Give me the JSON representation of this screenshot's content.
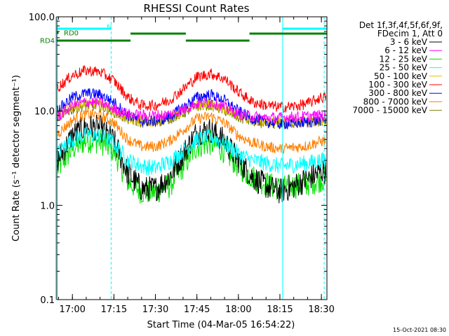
{
  "chart_data": {
    "type": "line",
    "title": "RHESSI Count Rates",
    "xlabel": "Start Time (04-Mar-05 16:54:22)",
    "ylabel": "Count Rate (s⁻¹ detector segment⁻¹)",
    "yscale": "log",
    "ylim": [
      0.1,
      100.0
    ],
    "xlim": [
      "16:54:22",
      "18:32:00"
    ],
    "x_ticks": [
      "17:00",
      "17:15",
      "17:30",
      "17:45",
      "18:00",
      "18:15",
      "18:30"
    ],
    "y_ticks": [
      "0.1",
      "1.0",
      "10.0",
      "100.0"
    ],
    "legend_header": [
      "Det 1f,3f,4f,5f,6f,9f,",
      "FDecim 1, Att 0"
    ],
    "legend_position": "right",
    "grid": false,
    "series": [
      {
        "name": "3 - 6 keV",
        "color": "#000000",
        "x": [
          "16:54",
          "17:00",
          "17:05",
          "17:10",
          "17:15",
          "17:20",
          "17:25",
          "17:30",
          "17:35",
          "17:40",
          "17:45",
          "17:50",
          "17:55",
          "18:00",
          "18:05",
          "18:10",
          "18:15",
          "18:20",
          "18:25",
          "18:30"
        ],
        "values": [
          2.8,
          5.5,
          6.8,
          6.6,
          4.8,
          2.2,
          1.5,
          1.5,
          2.0,
          3.5,
          6.0,
          6.3,
          4.8,
          3.0,
          2.0,
          1.6,
          1.4,
          1.6,
          1.9,
          2.3
        ]
      },
      {
        "name": "6 - 12 keV",
        "color": "#ff00ff",
        "x": [
          "16:54",
          "17:00",
          "17:05",
          "17:10",
          "17:15",
          "17:20",
          "17:25",
          "17:30",
          "17:35",
          "17:40",
          "17:45",
          "17:50",
          "17:55",
          "18:00",
          "18:05",
          "18:10",
          "18:15",
          "18:20",
          "18:25",
          "18:30"
        ],
        "values": [
          8.2,
          11.5,
          12.5,
          12.3,
          10.5,
          9.3,
          9.0,
          9.0,
          9.2,
          10.3,
          12.0,
          12.5,
          11.0,
          9.3,
          8.8,
          8.5,
          8.5,
          8.7,
          8.8,
          9.0
        ]
      },
      {
        "name": "12 - 25 keV",
        "color": "#00e000",
        "x": [
          "16:54",
          "17:00",
          "17:05",
          "17:10",
          "17:15",
          "17:20",
          "17:25",
          "17:30",
          "17:35",
          "17:40",
          "17:45",
          "17:50",
          "17:55",
          "18:00",
          "18:05",
          "18:10",
          "18:15",
          "18:20",
          "18:25",
          "18:30"
        ],
        "values": [
          2.3,
          4.0,
          4.9,
          4.8,
          3.8,
          1.8,
          1.4,
          1.4,
          1.6,
          2.6,
          4.3,
          4.6,
          3.8,
          2.6,
          2.0,
          1.7,
          1.5,
          1.6,
          1.7,
          1.9
        ]
      },
      {
        "name": "25 - 50 keV",
        "color": "#00ffff",
        "x": [
          "16:54",
          "17:00",
          "17:05",
          "17:10",
          "17:15",
          "17:20",
          "17:25",
          "17:30",
          "17:35",
          "17:40",
          "17:45",
          "17:50",
          "17:55",
          "18:00",
          "18:05",
          "18:10",
          "18:15",
          "18:20",
          "18:25",
          "18:30"
        ],
        "values": [
          3.5,
          5.0,
          5.6,
          5.5,
          4.6,
          3.0,
          2.6,
          2.5,
          2.9,
          3.8,
          5.0,
          5.3,
          4.6,
          3.5,
          3.0,
          2.8,
          2.6,
          2.7,
          2.8,
          3.0
        ]
      },
      {
        "name": "50 - 100 keV",
        "color": "#e0c000",
        "x": [
          "16:54",
          "17:00",
          "17:05",
          "17:10",
          "17:15",
          "17:20",
          "17:25",
          "17:30",
          "17:35",
          "17:40",
          "17:45",
          "17:50",
          "17:55",
          "18:00",
          "18:05",
          "18:10",
          "18:15",
          "18:20",
          "18:25",
          "18:30"
        ],
        "values": [
          9.0,
          11.0,
          12.0,
          11.8,
          10.0,
          8.4,
          7.8,
          7.8,
          8.5,
          9.8,
          11.8,
          12.0,
          10.5,
          8.8,
          8.0,
          7.6,
          7.6,
          7.7,
          7.8,
          8.0
        ]
      },
      {
        "name": "100 - 300 keV",
        "color": "#ff0000",
        "x": [
          "16:54",
          "17:00",
          "17:05",
          "17:10",
          "17:15",
          "17:20",
          "17:25",
          "17:30",
          "17:35",
          "17:40",
          "17:45",
          "17:50",
          "17:55",
          "18:00",
          "18:05",
          "18:10",
          "18:15",
          "18:20",
          "18:25",
          "18:30"
        ],
        "values": [
          17.0,
          24.0,
          27.0,
          26.0,
          21.0,
          14.0,
          11.5,
          11.5,
          13.0,
          17.0,
          23.0,
          25.0,
          22.0,
          16.0,
          12.5,
          11.5,
          11.0,
          11.2,
          12.0,
          14.0
        ]
      },
      {
        "name": "300 - 800 keV",
        "color": "#0000ff",
        "x": [
          "16:54",
          "17:00",
          "17:05",
          "17:10",
          "17:15",
          "17:20",
          "17:25",
          "17:30",
          "17:35",
          "17:40",
          "17:45",
          "17:50",
          "17:55",
          "18:00",
          "18:05",
          "18:10",
          "18:15",
          "18:20",
          "18:25",
          "18:30"
        ],
        "values": [
          10.0,
          14.0,
          15.5,
          15.0,
          12.5,
          9.0,
          7.8,
          7.8,
          8.6,
          11.0,
          14.0,
          15.0,
          13.0,
          10.0,
          8.3,
          7.6,
          7.3,
          7.4,
          7.6,
          8.0
        ]
      },
      {
        "name": "800 - 7000 keV",
        "color": "#ff8000",
        "x": [
          "16:54",
          "17:00",
          "17:05",
          "17:10",
          "17:15",
          "17:20",
          "17:25",
          "17:30",
          "17:35",
          "17:40",
          "17:45",
          "17:50",
          "17:55",
          "18:00",
          "18:05",
          "18:10",
          "18:15",
          "18:20",
          "18:25",
          "18:30"
        ],
        "values": [
          5.5,
          8.0,
          9.3,
          9.0,
          7.5,
          5.0,
          4.2,
          4.2,
          4.8,
          6.3,
          8.3,
          8.8,
          7.5,
          5.5,
          4.6,
          4.2,
          4.0,
          4.1,
          4.3,
          4.8
        ]
      },
      {
        "name": "7000 - 15000 keV",
        "color": "#808000",
        "x": [
          "16:54",
          "17:00",
          "17:05",
          "17:10",
          "17:15",
          "17:20",
          "17:25",
          "17:30",
          "17:35",
          "17:40",
          "17:45",
          "17:50",
          "17:55",
          "18:00",
          "18:05",
          "18:10",
          "18:15",
          "18:20",
          "18:25",
          "18:30"
        ],
        "values": [
          8.5,
          10.5,
          11.5,
          11.3,
          9.8,
          8.2,
          7.6,
          7.6,
          8.3,
          9.5,
          11.3,
          11.6,
          10.2,
          8.5,
          7.8,
          7.4,
          7.4,
          7.5,
          7.6,
          7.8
        ]
      }
    ],
    "flag_bars": [
      {
        "label": "",
        "color": "#00ffff",
        "row": 1,
        "segments": [
          [
            "16:54",
            "17:14"
          ],
          [
            "18:16",
            "18:32"
          ]
        ],
        "marker": "N"
      },
      {
        "label": "RD0",
        "color": "#008000",
        "row": 2,
        "segments": [
          [
            "16:54",
            "16:55"
          ]
        ]
      },
      {
        "label": "",
        "color": "#008000",
        "row": 3,
        "segments": [
          [
            "17:21",
            "17:41"
          ],
          [
            "18:04",
            "18:32"
          ]
        ]
      },
      {
        "label": "RD4",
        "color": "#008000",
        "row": 4,
        "segments": [
          [
            "16:54",
            "17:21"
          ],
          [
            "17:41",
            "18:04"
          ]
        ]
      }
    ],
    "vertical_markers": [
      {
        "time": "16:54",
        "style": "solid",
        "color": "#00ffff"
      },
      {
        "time": "17:14",
        "style": "dashed",
        "color": "#00ffff"
      },
      {
        "time": "18:16",
        "style": "solid",
        "color": "#00ffff"
      },
      {
        "time": "18:31",
        "style": "dashed",
        "color": "#00ffff"
      }
    ],
    "footer_timestamp": "15-Oct-2021 08:30"
  }
}
